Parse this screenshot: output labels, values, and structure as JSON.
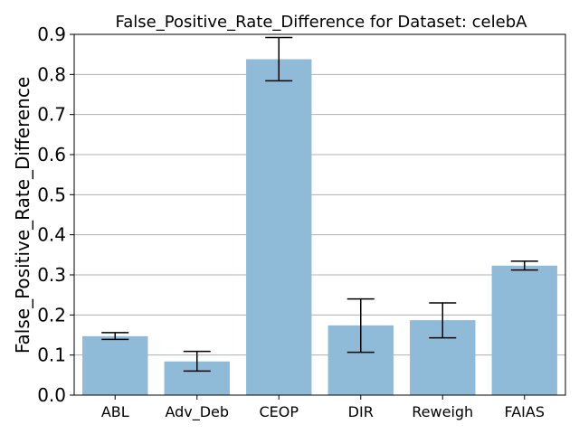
{
  "chart_data": {
    "type": "bar",
    "title": "False_Positive_Rate_Difference for Dataset: celebA",
    "xlabel": "",
    "ylabel": "False_Positive_Rate_Difference",
    "categories": [
      "ABL",
      "Adv_Deb",
      "CEOP",
      "DIR",
      "Reweigh",
      "FAIAS"
    ],
    "values": [
      0.147,
      0.084,
      0.838,
      0.174,
      0.187,
      0.323
    ],
    "error_low": [
      0.139,
      0.06,
      0.784,
      0.107,
      0.143,
      0.312
    ],
    "error_high": [
      0.156,
      0.109,
      0.892,
      0.24,
      0.23,
      0.334
    ],
    "ylim": [
      0.0,
      0.9
    ],
    "yticks": [
      "0.0",
      "0.1",
      "0.2",
      "0.3",
      "0.4",
      "0.5",
      "0.6",
      "0.7",
      "0.8",
      "0.9"
    ],
    "grid": "horizontal",
    "bar_color": "#8fbbd9",
    "error_bar_color": "#000000"
  }
}
